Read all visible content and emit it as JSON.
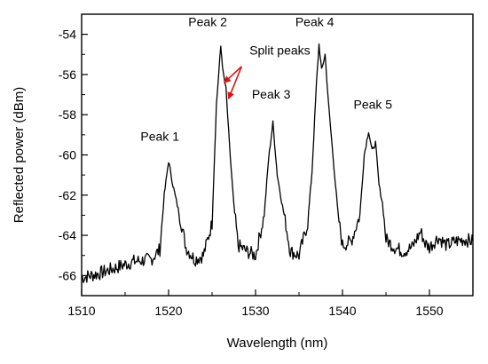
{
  "chart_data": {
    "type": "line",
    "title": "",
    "xlabel": "Wavelength (nm)",
    "ylabel": "Reflected power (dBm)",
    "xlim": [
      1510,
      1555
    ],
    "ylim": [
      -67,
      -53
    ],
    "x_ticks": [
      1510,
      1520,
      1530,
      1540,
      1550
    ],
    "y_ticks": [
      -66,
      -64,
      -62,
      -60,
      -58,
      -56,
      -54
    ],
    "x_tick_labels": [
      "1510",
      "1520",
      "1530",
      "1540",
      "1550"
    ],
    "y_tick_labels": [
      "-66",
      "-64",
      "-62",
      "-60",
      "-58",
      "-56",
      "-54"
    ],
    "grid": false,
    "series": [
      {
        "color": "#000000",
        "x": [
          1510,
          1512,
          1514,
          1516,
          1518,
          1519,
          1519.5,
          1520,
          1520.5,
          1521,
          1521.5,
          1522,
          1523,
          1524,
          1525,
          1525.5,
          1526,
          1526.3,
          1526.6,
          1527,
          1527.5,
          1528,
          1529,
          1530,
          1531,
          1531.5,
          1532,
          1532.5,
          1533,
          1533.5,
          1534,
          1535,
          1536,
          1536.5,
          1537,
          1537.3,
          1537.6,
          1538,
          1538.4,
          1539,
          1539.5,
          1540,
          1541,
          1542,
          1542.5,
          1543,
          1543.4,
          1543.8,
          1544.2,
          1544.6,
          1545,
          1546,
          1547,
          1548,
          1549,
          1549.5,
          1550,
          1551,
          1552,
          1553,
          1554,
          1555
        ],
        "y": [
          -66.1,
          -65.9,
          -65.6,
          -65.3,
          -65.2,
          -64.7,
          -62.0,
          -60.3,
          -61.5,
          -62.5,
          -63.5,
          -64.6,
          -65.2,
          -65.0,
          -63.4,
          -57.5,
          -54.6,
          -56.0,
          -56.7,
          -59.5,
          -62.5,
          -64.5,
          -64.8,
          -65.0,
          -63.0,
          -60.2,
          -58.4,
          -61.0,
          -62.3,
          -63.5,
          -64.8,
          -65.0,
          -63.4,
          -60.8,
          -56.5,
          -54.5,
          -55.8,
          -55.0,
          -57.5,
          -60.5,
          -63.0,
          -64.5,
          -64.3,
          -63.0,
          -60.0,
          -58.8,
          -59.8,
          -59.4,
          -61.5,
          -62.4,
          -64.2,
          -64.6,
          -64.8,
          -64.6,
          -63.8,
          -64.4,
          -64.6,
          -64.1,
          -64.5,
          -64.3,
          -64.2,
          -64.3
        ]
      }
    ],
    "annotations": [
      {
        "text": "Peak 1",
        "x": 1519.0,
        "y": -59.3
      },
      {
        "text": "Peak 2",
        "x": 1524.5,
        "y": -53.6
      },
      {
        "text": "Split peaks",
        "x": 1532.8,
        "y": -55.0
      },
      {
        "text": "Peak 3",
        "x": 1531.8,
        "y": -57.2
      },
      {
        "text": "Peak 4",
        "x": 1536.8,
        "y": -53.6
      },
      {
        "text": "Peak 5",
        "x": 1543.5,
        "y": -57.7
      }
    ],
    "arrows": [
      {
        "from": [
          1528.4,
          -55.6
        ],
        "to": [
          1526.4,
          -56.4
        ]
      },
      {
        "from": [
          1528.4,
          -55.6
        ],
        "to": [
          1526.9,
          -57.2
        ]
      }
    ],
    "arrow_color": "#dd1111"
  }
}
